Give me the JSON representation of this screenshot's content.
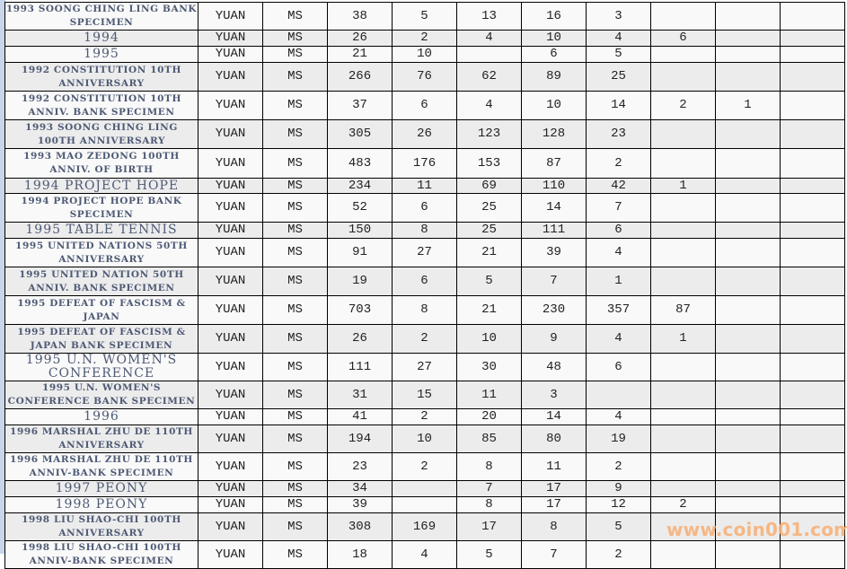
{
  "columns_count": 11,
  "rows": [
    {
      "name": "1993 SOONG CHING LING BANK SPECIMEN",
      "unit": "YUAN",
      "grade": "MS",
      "values": [
        "38",
        "5",
        "13",
        "16",
        "3",
        "",
        "",
        ""
      ]
    },
    {
      "name": "1994",
      "unit": "YUAN",
      "grade": "MS",
      "values": [
        "26",
        "2",
        "4",
        "10",
        "4",
        "6",
        "",
        ""
      ]
    },
    {
      "name": "1995",
      "unit": "YUAN",
      "grade": "MS",
      "values": [
        "21",
        "10",
        "",
        "6",
        "5",
        "",
        "",
        ""
      ]
    },
    {
      "name": "1992 CONSTITUTION 10TH ANNIVERSARY",
      "unit": "YUAN",
      "grade": "MS",
      "values": [
        "266",
        "76",
        "62",
        "89",
        "25",
        "",
        "",
        ""
      ]
    },
    {
      "name": "1992 CONSTITUTION 10TH ANNIV. BANK SPECIMEN",
      "unit": "YUAN",
      "grade": "MS",
      "values": [
        "37",
        "6",
        "4",
        "10",
        "14",
        "2",
        "1",
        ""
      ]
    },
    {
      "name": "1993 SOONG CHING LING 100TH ANNIVERSARY",
      "unit": "YUAN",
      "grade": "MS",
      "values": [
        "305",
        "26",
        "123",
        "128",
        "23",
        "",
        "",
        ""
      ]
    },
    {
      "name": "1993 MAO ZEDONG 100TH ANNIV. OF BIRTH",
      "unit": "YUAN",
      "grade": "MS",
      "values": [
        "483",
        "176",
        "153",
        "87",
        "2",
        "",
        "",
        ""
      ]
    },
    {
      "name": "1994 PROJECT HOPE",
      "unit": "YUAN",
      "grade": "MS",
      "values": [
        "234",
        "11",
        "69",
        "110",
        "42",
        "1",
        "",
        ""
      ]
    },
    {
      "name": "1994 PROJECT HOPE BANK SPECIMEN",
      "unit": "YUAN",
      "grade": "MS",
      "values": [
        "52",
        "6",
        "25",
        "14",
        "7",
        "",
        "",
        ""
      ]
    },
    {
      "name": "1995 TABLE TENNIS",
      "unit": "YUAN",
      "grade": "MS",
      "values": [
        "150",
        "8",
        "25",
        "111",
        "6",
        "",
        "",
        ""
      ]
    },
    {
      "name": "1995 UNITED NATIONS 50TH ANNIVERSARY",
      "unit": "YUAN",
      "grade": "MS",
      "values": [
        "91",
        "27",
        "21",
        "39",
        "4",
        "",
        "",
        ""
      ]
    },
    {
      "name": "1995 UNITED NATION 50TH ANNIV. BANK SPECIMEN",
      "unit": "YUAN",
      "grade": "MS",
      "values": [
        "19",
        "6",
        "5",
        "7",
        "1",
        "",
        "",
        ""
      ]
    },
    {
      "name": "1995 DEFEAT OF FASCISM & JAPAN",
      "unit": "YUAN",
      "grade": "MS",
      "values": [
        "703",
        "8",
        "21",
        "230",
        "357",
        "87",
        "",
        ""
      ]
    },
    {
      "name": "1995 DEFEAT OF FASCISM & JAPAN BANK SPECIMEN",
      "unit": "YUAN",
      "grade": "MS",
      "values": [
        "26",
        "2",
        "10",
        "9",
        "4",
        "1",
        "",
        ""
      ]
    },
    {
      "name": "1995 U.N. WOMEN'S CONFERENCE",
      "unit": "YUAN",
      "grade": "MS",
      "values": [
        "111",
        "27",
        "30",
        "48",
        "6",
        "",
        "",
        ""
      ]
    },
    {
      "name": "1995 U.N. WOMEN'S CONFERENCE BANK SPECIMEN",
      "unit": "YUAN",
      "grade": "MS",
      "values": [
        "31",
        "15",
        "11",
        "3",
        "",
        "",
        "",
        ""
      ]
    },
    {
      "name": "1996",
      "unit": "YUAN",
      "grade": "MS",
      "values": [
        "41",
        "2",
        "20",
        "14",
        "4",
        "",
        "",
        ""
      ]
    },
    {
      "name": "1996 MARSHAL ZHU DE 110TH ANNIVERSARY",
      "unit": "YUAN",
      "grade": "MS",
      "values": [
        "194",
        "10",
        "85",
        "80",
        "19",
        "",
        "",
        ""
      ]
    },
    {
      "name": "1996 MARSHAL ZHU DE 110TH ANNIV-BANK SPECIMEN",
      "unit": "YUAN",
      "grade": "MS",
      "values": [
        "23",
        "2",
        "8",
        "11",
        "2",
        "",
        "",
        ""
      ]
    },
    {
      "name": "1997 PEONY",
      "unit": "YUAN",
      "grade": "MS",
      "values": [
        "34",
        "",
        "7",
        "17",
        "9",
        "",
        "",
        ""
      ]
    },
    {
      "name": "1998 PEONY",
      "unit": "YUAN",
      "grade": "MS",
      "values": [
        "39",
        "",
        "8",
        "17",
        "12",
        "2",
        "",
        ""
      ]
    },
    {
      "name": "1998 LIU SHAO-CHI 100TH ANNIVERSARY",
      "unit": "YUAN",
      "grade": "MS",
      "values": [
        "308",
        "169",
        "17",
        "8",
        "5",
        "",
        "",
        ""
      ]
    },
    {
      "name": "1998 LIU SHAO-CHI 100TH ANNIV-BANK SPECIMEN",
      "unit": "YUAN",
      "grade": "MS",
      "values": [
        "18",
        "4",
        "5",
        "7",
        "2",
        "",
        "",
        ""
      ]
    }
  ],
  "watermark": "www.coin001.com",
  "colors": {
    "name_text": "#4e5a75",
    "row_alt": "#ececec",
    "watermark": "#f6b27a"
  }
}
